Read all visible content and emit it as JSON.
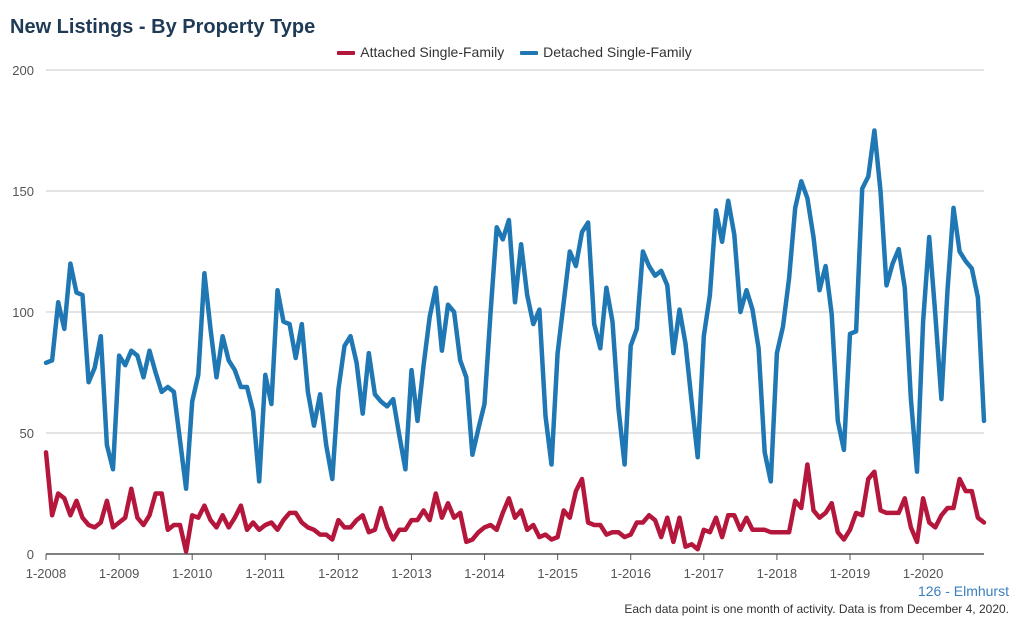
{
  "colors": {
    "attached": "#b5173c",
    "detached": "#1f77b4",
    "grid": "#c8c8c8",
    "axis": "#555555"
  },
  "footer": {
    "area_label": "126 - Elmhurst",
    "note": "Each data point is one month of activity. Data is from December 4, 2020."
  },
  "chart_data": {
    "type": "line",
    "title": "New Listings - By Property Type",
    "x_tick_labels": [
      "1-2008",
      "1-2009",
      "1-2010",
      "1-2011",
      "1-2012",
      "1-2013",
      "1-2014",
      "1-2015",
      "1-2016",
      "1-2017",
      "1-2018",
      "1-2019",
      "1-2020"
    ],
    "x_start": "2008-01",
    "x_end": "2020-11",
    "y_ticks": [
      0,
      50,
      100,
      150,
      200
    ],
    "ylim": [
      0,
      200
    ],
    "grid": true,
    "legend_position": "top-center",
    "series": [
      {
        "name": "Attached Single-Family",
        "color": "#b5173c",
        "values": [
          42,
          16,
          25,
          23,
          16,
          22,
          15,
          12,
          11,
          13,
          22,
          11,
          13,
          15,
          27,
          15,
          12,
          16,
          25,
          25,
          10,
          12,
          12,
          1,
          16,
          15,
          20,
          14,
          11,
          16,
          11,
          15,
          20,
          10,
          13,
          10,
          12,
          13,
          10,
          14,
          17,
          17,
          13,
          11,
          10,
          8,
          8,
          6,
          14,
          11,
          11,
          14,
          16,
          9,
          10,
          19,
          11,
          6,
          10,
          10,
          14,
          14,
          18,
          14,
          25,
          15,
          21,
          15,
          17,
          5,
          6,
          9,
          11,
          12,
          10,
          17,
          23,
          15,
          18,
          10,
          12,
          7,
          8,
          6,
          7,
          18,
          15,
          26,
          31,
          13,
          12,
          12,
          8,
          9,
          9,
          7,
          8,
          13,
          13,
          16,
          14,
          7,
          15,
          5,
          15,
          3,
          4,
          2,
          10,
          9,
          15,
          7,
          16,
          16,
          10,
          15,
          10,
          10,
          10,
          9,
          9,
          9,
          9,
          22,
          19,
          37,
          18,
          15,
          17,
          21,
          9,
          6,
          10,
          17,
          16,
          31,
          34,
          18,
          17,
          17,
          17,
          23,
          11,
          5,
          23,
          13,
          11,
          16,
          19,
          19,
          31,
          26,
          26,
          15,
          13
        ]
      },
      {
        "name": "Detached Single-Family",
        "color": "#1f77b4",
        "values": [
          79,
          80,
          104,
          93,
          120,
          108,
          107,
          71,
          77,
          90,
          45,
          35,
          82,
          78,
          84,
          82,
          73,
          84,
          75,
          67,
          69,
          67,
          47,
          27,
          63,
          74,
          116,
          93,
          73,
          90,
          80,
          76,
          69,
          69,
          59,
          30,
          74,
          62,
          109,
          96,
          95,
          81,
          95,
          67,
          53,
          66,
          45,
          31,
          68,
          86,
          90,
          79,
          58,
          83,
          66,
          63,
          61,
          64,
          49,
          35,
          76,
          55,
          78,
          98,
          110,
          84,
          103,
          100,
          80,
          73,
          41,
          52,
          62,
          100,
          135,
          130,
          138,
          104,
          128,
          107,
          95,
          101,
          57,
          37,
          83,
          104,
          125,
          119,
          133,
          137,
          95,
          85,
          110,
          96,
          60,
          37,
          86,
          93,
          125,
          119,
          115,
          117,
          111,
          83,
          101,
          87,
          63,
          40,
          90,
          107,
          142,
          129,
          146,
          132,
          100,
          109,
          101,
          85,
          42,
          30,
          83,
          94,
          114,
          143,
          154,
          147,
          131,
          109,
          119,
          99,
          55,
          43,
          91,
          92,
          151,
          156,
          175,
          150,
          111,
          120,
          126,
          110,
          64,
          34,
          96,
          131,
          99,
          64,
          109,
          143,
          125,
          121,
          118,
          106,
          55
        ]
      }
    ]
  }
}
